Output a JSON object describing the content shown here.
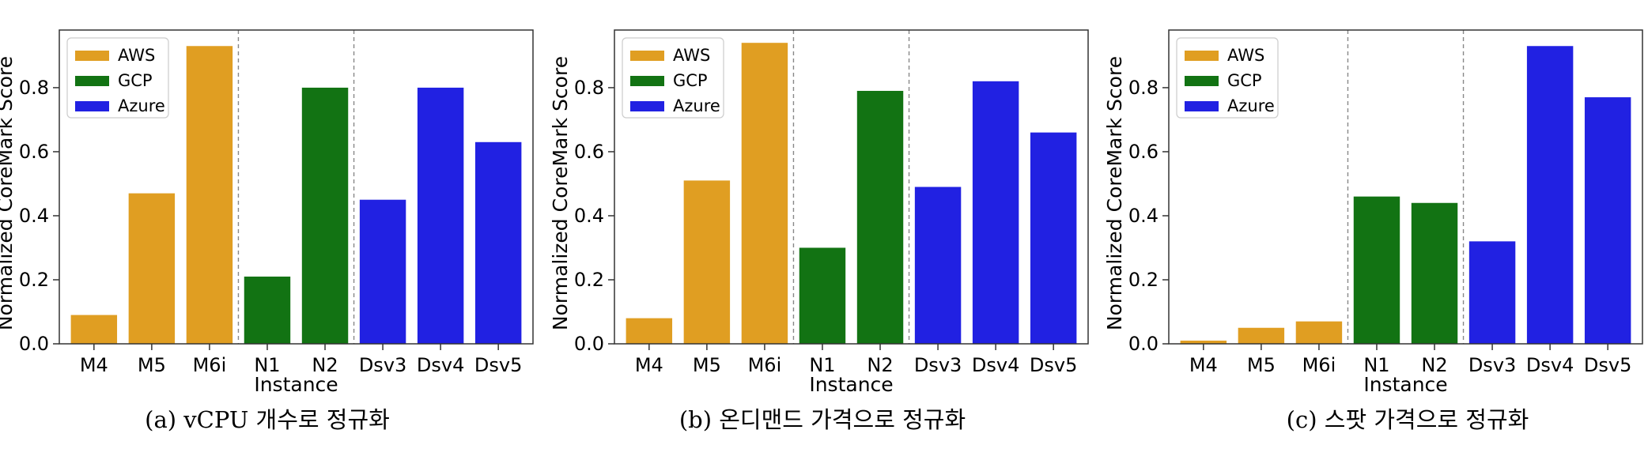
{
  "colors": {
    "AWS": "#E09E22",
    "GCP": "#127313",
    "Azure": "#2121E2"
  },
  "legend": [
    "AWS",
    "GCP",
    "Azure"
  ],
  "chart_data": [
    {
      "type": "bar",
      "categories": [
        "M4",
        "M5",
        "M6i",
        "N1",
        "N2",
        "Dsv3",
        "Dsv4",
        "Dsv5"
      ],
      "providers": [
        "AWS",
        "AWS",
        "AWS",
        "GCP",
        "GCP",
        "Azure",
        "Azure",
        "Azure"
      ],
      "values": [
        0.09,
        0.47,
        0.93,
        0.21,
        0.8,
        0.45,
        0.8,
        0.63
      ],
      "ylabel": "Normalized CoreMark Score",
      "xlabel": "Instance",
      "ylim": [
        0,
        0.98
      ],
      "yticks": [
        0.0,
        0.2,
        0.4,
        0.6,
        0.8
      ],
      "legend_position": "top-left",
      "caption": "(a) vCPU 개수로 정규화"
    },
    {
      "type": "bar",
      "categories": [
        "M4",
        "M5",
        "M6i",
        "N1",
        "N2",
        "Dsv3",
        "Dsv4",
        "Dsv5"
      ],
      "providers": [
        "AWS",
        "AWS",
        "AWS",
        "GCP",
        "GCP",
        "Azure",
        "Azure",
        "Azure"
      ],
      "values": [
        0.08,
        0.51,
        0.94,
        0.3,
        0.79,
        0.49,
        0.82,
        0.66
      ],
      "ylabel": "Normalized CoreMark Score",
      "xlabel": "Instance",
      "ylim": [
        0,
        0.98
      ],
      "yticks": [
        0.0,
        0.2,
        0.4,
        0.6,
        0.8
      ],
      "legend_position": "top-left",
      "caption": "(b) 온디맨드 가격으로 정규화"
    },
    {
      "type": "bar",
      "categories": [
        "M4",
        "M5",
        "M6i",
        "N1",
        "N2",
        "Dsv3",
        "Dsv4",
        "Dsv5"
      ],
      "providers": [
        "AWS",
        "AWS",
        "AWS",
        "GCP",
        "GCP",
        "Azure",
        "Azure",
        "Azure"
      ],
      "values": [
        0.01,
        0.05,
        0.07,
        0.46,
        0.44,
        0.32,
        0.93,
        0.77
      ],
      "ylabel": "Normalized CoreMark Score",
      "xlabel": "Instance",
      "ylim": [
        0,
        0.98
      ],
      "yticks": [
        0.0,
        0.2,
        0.4,
        0.6,
        0.8
      ],
      "legend_position": "top-left",
      "caption": "(c) 스팟 가격으로 정규화"
    }
  ]
}
